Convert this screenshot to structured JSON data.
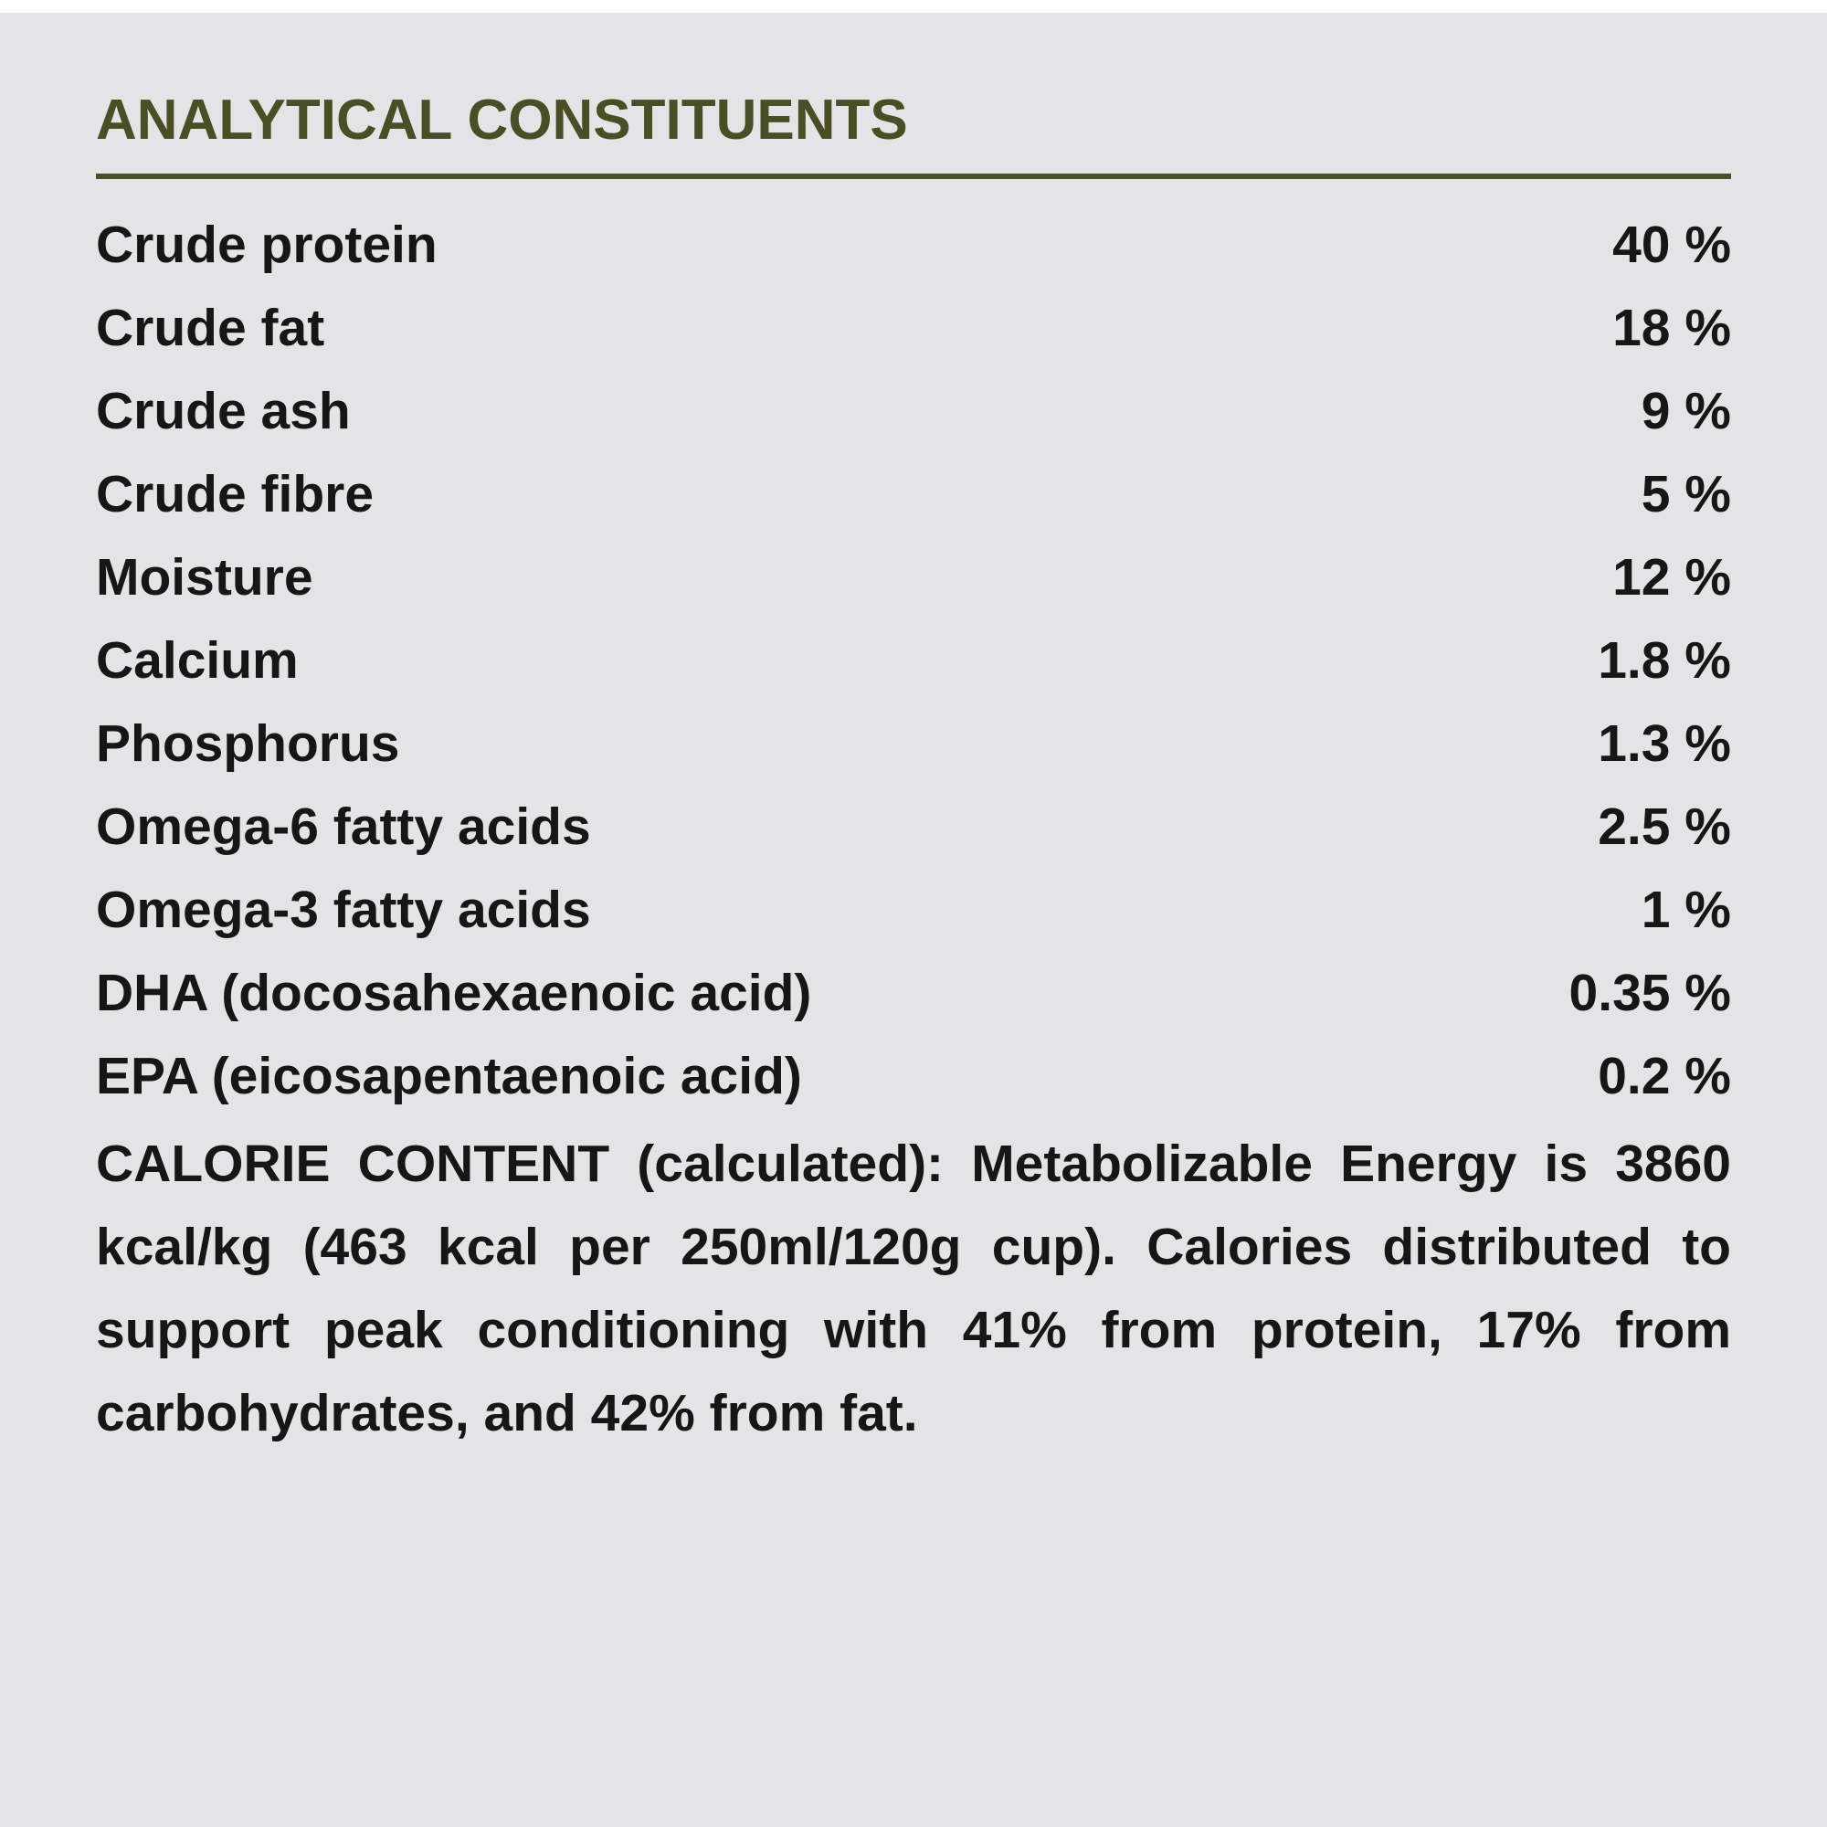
{
  "colors": {
    "background": "#e4e4e6",
    "heading": "#4a4e25",
    "rule": "#4a4e25",
    "text": "#161616"
  },
  "section": {
    "title": "ANALYTICAL CONSTITUENTS"
  },
  "table": {
    "rows": [
      {
        "label": "Crude protein",
        "value": "40 %"
      },
      {
        "label": "Crude fat",
        "value": "18 %"
      },
      {
        "label": "Crude ash",
        "value": "9 %"
      },
      {
        "label": "Crude fibre",
        "value": "5 %"
      },
      {
        "label": "Moisture",
        "value": "12 %"
      },
      {
        "label": "Calcium",
        "value": "1.8 %"
      },
      {
        "label": "Phosphorus",
        "value": "1.3 %"
      },
      {
        "label": "Omega-6 fatty acids",
        "value": "2.5 %"
      },
      {
        "label": "Omega-3 fatty acids",
        "value": "1 %"
      },
      {
        "label": "DHA (docosahexaenoic acid)",
        "value": "0.35 %"
      },
      {
        "label": "EPA (eicosapentaenoic acid)",
        "value": "0.2 %"
      }
    ]
  },
  "calorie_content": {
    "text": "CALORIE CONTENT (calculated): Metabolizable Energy is 3860 kcal/kg (463 kcal per 250ml/120g cup). Calories distributed to support peak conditioning with 41% from protein, 17% from carbohydrates, and 42% from fat."
  }
}
